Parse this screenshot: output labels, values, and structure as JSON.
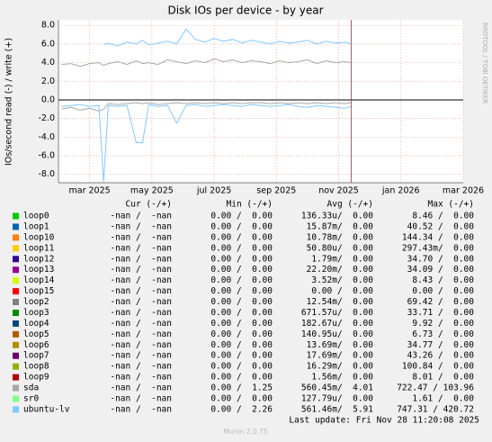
{
  "chart_data": {
    "type": "line",
    "title": "Disk IOs per device - by year",
    "y_label": "IOs/second read (-) / write (+)",
    "watermark": "RRDTOOL / TOBI OETIKER",
    "xlim": [
      1.0,
      14.0
    ],
    "xticks": [
      {
        "value": 2,
        "label": "mar 2025"
      },
      {
        "value": 4,
        "label": "may 2025"
      },
      {
        "value": 6,
        "label": "jul 2025"
      },
      {
        "value": 8,
        "label": "sep 2025"
      },
      {
        "value": 10,
        "label": "nov 2025"
      },
      {
        "value": 12,
        "label": "jan 2026"
      },
      {
        "value": 14,
        "label": "mar 2026"
      }
    ],
    "ylim": [
      -8.9,
      8.6
    ],
    "yticks": [
      {
        "value": -8,
        "label": "-8.0"
      },
      {
        "value": -6,
        "label": "-6.0"
      },
      {
        "value": -4,
        "label": "-4.0"
      },
      {
        "value": -2,
        "label": "-2.0"
      },
      {
        "value": 0,
        "label": "0.0"
      },
      {
        "value": 2,
        "label": "2.0"
      },
      {
        "value": 4,
        "label": "4.0"
      },
      {
        "value": 6,
        "label": "6.0"
      },
      {
        "value": 8,
        "label": "8.0"
      }
    ],
    "grid": true,
    "x": [
      1.1,
      1.4,
      1.7,
      2.0,
      2.3,
      2.45,
      2.6,
      2.9,
      3.2,
      3.5,
      3.7,
      3.9,
      4.2,
      4.5,
      4.8,
      5.1,
      5.4,
      5.7,
      6.0,
      6.3,
      6.6,
      6.9,
      7.2,
      7.5,
      7.8,
      8.1,
      8.4,
      8.7,
      9.0,
      9.3,
      9.6,
      9.9,
      10.2,
      10.4
    ],
    "series": [
      {
        "name": "loop0",
        "color": "#00cc00"
      },
      {
        "name": "loop1",
        "color": "#0066b3"
      },
      {
        "name": "loop10",
        "color": "#ff8000"
      },
      {
        "name": "loop11",
        "color": "#ffcc00"
      },
      {
        "name": "loop12",
        "color": "#330099"
      },
      {
        "name": "loop13",
        "color": "#990099"
      },
      {
        "name": "loop14",
        "color": "#ccff00"
      },
      {
        "name": "loop15",
        "color": "#ff0000"
      },
      {
        "name": "loop2",
        "color": "#808080"
      },
      {
        "name": "loop3",
        "color": "#008f00"
      },
      {
        "name": "loop4",
        "color": "#00487d"
      },
      {
        "name": "loop5",
        "color": "#b35a00"
      },
      {
        "name": "loop6",
        "color": "#b38f00"
      },
      {
        "name": "loop7",
        "color": "#6b006b"
      },
      {
        "name": "loop8",
        "color": "#8fb300"
      },
      {
        "name": "loop9",
        "color": "#b30000"
      },
      {
        "name": "sda",
        "color": "#a8a8a8",
        "values": [
          3.8,
          3.9,
          3.6,
          3.9,
          4.0,
          3.7,
          3.9,
          4.1,
          3.8,
          4.2,
          3.9,
          4.0,
          3.8,
          4.3,
          4.1,
          3.9,
          4.2,
          4.0,
          4.4,
          4.1,
          4.3,
          4.0,
          4.2,
          4.1,
          3.9,
          4.2,
          4.0,
          4.1,
          4.3,
          3.9,
          4.2,
          4.0,
          4.1,
          4.0
        ],
        "read": [
          -1.0,
          -0.8,
          -1.1,
          -0.9,
          -1.2,
          -1.0,
          -0.4,
          -0.5,
          -0.4,
          -0.3,
          -0.4,
          -0.3,
          -0.5,
          -0.4,
          -0.3,
          -0.4,
          -0.3,
          -0.4,
          -0.3,
          -0.4,
          -0.3,
          -0.4,
          -0.3,
          -0.3,
          -0.4,
          -0.3,
          -0.4,
          -0.3,
          -0.4,
          -0.3,
          -0.4,
          -0.3,
          -0.4,
          -0.3
        ]
      },
      {
        "name": "sr0",
        "color": "#80ff80"
      },
      {
        "name": "ubuntu-lv",
        "color": "#80c9ff",
        "values": [
          null,
          null,
          null,
          null,
          null,
          5.9,
          6.1,
          5.8,
          6.2,
          6.0,
          6.4,
          5.9,
          6.1,
          6.3,
          6.0,
          7.6,
          6.5,
          6.2,
          6.6,
          6.3,
          6.5,
          6.1,
          6.4,
          6.2,
          6.0,
          6.3,
          6.1,
          6.2,
          6.4,
          6.0,
          6.3,
          6.1,
          6.2,
          6.0
        ],
        "read": [
          -0.7,
          -0.6,
          -0.5,
          -0.7,
          -0.6,
          -8.8,
          -0.6,
          -0.7,
          -0.6,
          -4.6,
          -4.6,
          -0.5,
          -0.7,
          -0.6,
          -2.5,
          -0.6,
          -0.5,
          -0.7,
          -0.6,
          -0.5,
          -0.6,
          -0.7,
          -0.5,
          -0.6,
          -0.7,
          -0.6,
          -0.5,
          -0.7,
          -0.8,
          -0.6,
          -0.7,
          -0.8,
          -0.9,
          -0.7
        ]
      }
    ]
  },
  "legend": {
    "headers": [
      "Cur (-/+)",
      "Min (-/+)",
      "Avg (-/+)",
      "Max (-/+)"
    ],
    "rows": [
      [
        "-nan /  -nan",
        "0.00 /  0.00",
        "136.33u/  0.00",
        "8.46 /  0.00"
      ],
      [
        "-nan /  -nan",
        "0.00 /  0.00",
        "15.87m/  0.00",
        "40.52 /  0.00"
      ],
      [
        "-nan /  -nan",
        "0.00 /  0.00",
        "10.78m/  0.00",
        "144.34 /  0.00"
      ],
      [
        "-nan /  -nan",
        "0.00 /  0.00",
        "50.80u/  0.00",
        "297.43m/  0.00"
      ],
      [
        "-nan /  -nan",
        "0.00 /  0.00",
        "1.79m/  0.00",
        "34.70 /  0.00"
      ],
      [
        "-nan /  -nan",
        "0.00 /  0.00",
        "22.20m/  0.00",
        "34.09 /  0.00"
      ],
      [
        "-nan /  -nan",
        "0.00 /  0.00",
        "3.52m/  0.00",
        "8.43 /  0.00"
      ],
      [
        "-nan /  -nan",
        "0.00 /  0.00",
        "0.00 /  0.00",
        "0.00 /  0.00"
      ],
      [
        "-nan /  -nan",
        "0.00 /  0.00",
        "12.54m/  0.00",
        "69.42 /  0.00"
      ],
      [
        "-nan /  -nan",
        "0.00 /  0.00",
        "671.57u/  0.00",
        "33.71 /  0.00"
      ],
      [
        "-nan /  -nan",
        "0.00 /  0.00",
        "182.67u/  0.00",
        "9.92 /  0.00"
      ],
      [
        "-nan /  -nan",
        "0.00 /  0.00",
        "140.95u/  0.00",
        "6.73 /  0.00"
      ],
      [
        "-nan /  -nan",
        "0.00 /  0.00",
        "13.69m/  0.00",
        "34.77 /  0.00"
      ],
      [
        "-nan /  -nan",
        "0.00 /  0.00",
        "17.69m/  0.00",
        "43.26 /  0.00"
      ],
      [
        "-nan /  -nan",
        "0.00 /  0.00",
        "16.29m/  0.00",
        "100.84 /  0.00"
      ],
      [
        "-nan /  -nan",
        "0.00 /  0.00",
        "1.56m/  0.00",
        "8.01 /  0.00"
      ],
      [
        "-nan /  -nan",
        "0.00 /  1.25",
        "560.45m/  4.01",
        "722.47 / 103.96"
      ],
      [
        "-nan /  -nan",
        "0.00 /  0.00",
        "127.79u/  0.00",
        "1.61 /  0.00"
      ],
      [
        "-nan /  -nan",
        "0.00 /  2.26",
        "561.46m/  5.91",
        "747.31 / 420.72"
      ]
    ]
  },
  "footer": {
    "last_update": "Last update: Fri Nov 28 11:20:08 2025",
    "version": "Munin 2.0.75"
  }
}
